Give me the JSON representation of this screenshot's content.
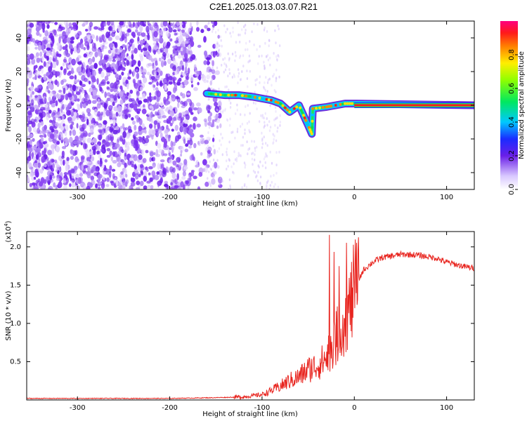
{
  "title": "C2E1.2025.013.03.07.R21",
  "chart_data": [
    {
      "type": "heatmap",
      "xlabel": "Height of straight line (km)",
      "ylabel": "Frequency (Hz)",
      "xlim": [
        -355,
        130
      ],
      "ylim": [
        -50,
        50
      ],
      "xticks": [
        -300,
        -200,
        -100,
        0,
        100
      ],
      "yticks": [
        -40,
        -20,
        0,
        20,
        40
      ],
      "noise_region_x": [
        -355,
        -160
      ],
      "signal_track": [
        {
          "x": -160,
          "y": 7
        },
        {
          "x": -140,
          "y": 6
        },
        {
          "x": -125,
          "y": 6
        },
        {
          "x": -110,
          "y": 5
        },
        {
          "x": -100,
          "y": 4
        },
        {
          "x": -90,
          "y": 3
        },
        {
          "x": -80,
          "y": 1
        },
        {
          "x": -70,
          "y": -4
        },
        {
          "x": -60,
          "y": 0
        },
        {
          "x": -55,
          "y": -6
        },
        {
          "x": -50,
          "y": -12
        },
        {
          "x": -46,
          "y": -17
        },
        {
          "x": -45,
          "y": -2
        },
        {
          "x": -30,
          "y": -1
        },
        {
          "x": -20,
          "y": 0
        },
        {
          "x": -10,
          "y": 1
        },
        {
          "x": 0,
          "y": 1
        },
        {
          "x": 130,
          "y": 0
        }
      ],
      "colorbar": {
        "label": "Normalized spectral amplitude",
        "range": [
          0,
          1
        ],
        "ticks": [
          "0.0",
          "0.2",
          "0.4",
          "0.6",
          "0.8"
        ]
      }
    },
    {
      "type": "line",
      "xlabel": "Height of straight line (km)",
      "ylabel": "SNR (10 * v/v)",
      "y_multiplier": "(x10",
      "y_multiplier_exp": "4",
      "y_multiplier_close": ")",
      "xlim": [
        -355,
        130
      ],
      "ylim": [
        0,
        2.2
      ],
      "xticks": [
        -300,
        -200,
        -100,
        0,
        100
      ],
      "yticks": [
        "0.5",
        "1.0",
        "1.5",
        "2.0"
      ],
      "series": [
        {
          "color": "#e8251f",
          "x": [
            -355,
            -300,
            -250,
            -200,
            -150,
            -120,
            -100,
            -90,
            -80,
            -70,
            -60,
            -50,
            -40,
            -30,
            -25,
            -20,
            -15,
            -10,
            -5,
            0,
            10,
            20,
            30,
            40,
            50,
            60,
            70,
            80,
            90,
            95,
            100,
            110,
            120,
            130
          ],
          "y": [
            0.02,
            0.02,
            0.02,
            0.02,
            0.03,
            0.04,
            0.07,
            0.12,
            0.18,
            0.25,
            0.3,
            0.4,
            0.45,
            0.55,
            0.7,
            0.8,
            0.95,
            1.05,
            1.2,
            1.45,
            1.7,
            1.8,
            1.86,
            1.88,
            1.9,
            1.9,
            1.89,
            1.87,
            1.85,
            1.82,
            1.8,
            1.77,
            1.74,
            1.72
          ]
        }
      ]
    }
  ]
}
